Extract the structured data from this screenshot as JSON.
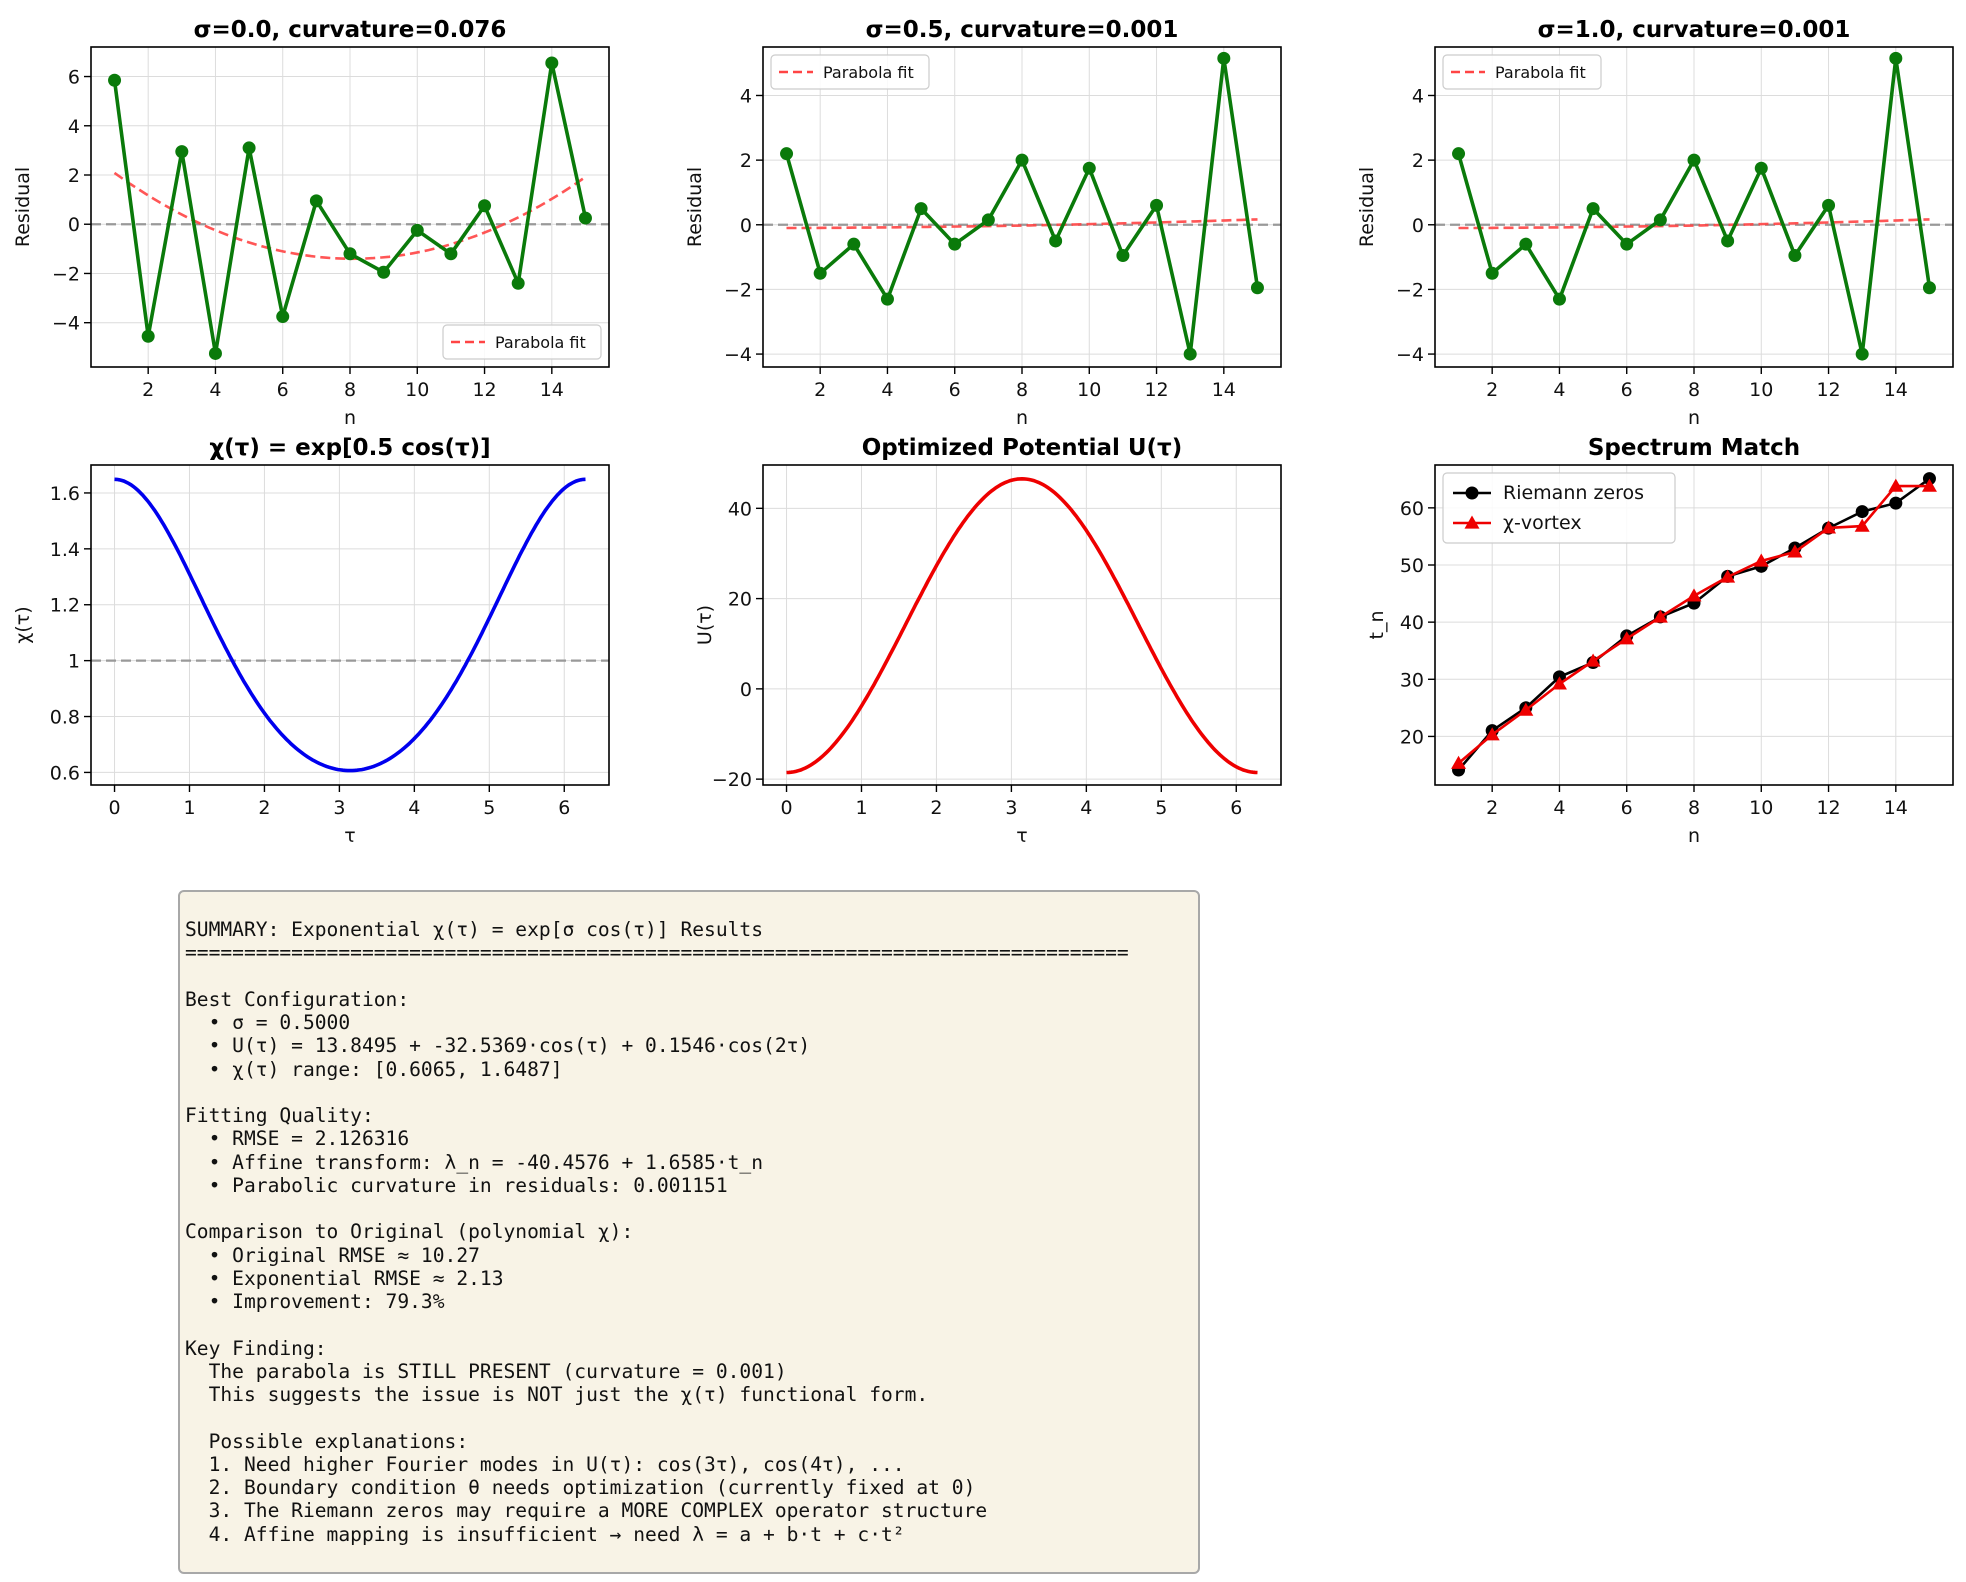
{
  "colors": {
    "residual_line": "#0a7a0a",
    "parabola": "#ff4444",
    "zero_line": "#999999",
    "chi_line": "#0000ee",
    "potential_line": "#ee0000",
    "riemann": "#000000",
    "vortex": "#ee0000",
    "grid": "#dcdcdc",
    "summary_bg": "#f8f3e6"
  },
  "chart_data": [
    {
      "id": "residual-sigma-0",
      "type": "line",
      "title": "σ=0.0, curvature=0.076",
      "xlabel": "n",
      "ylabel": "Residual",
      "xlim": [
        0.3,
        15.7
      ],
      "ylim": [
        -5.8,
        7.2
      ],
      "xticks": [
        2,
        4,
        6,
        8,
        10,
        12,
        14
      ],
      "yticks": [
        -4,
        -2,
        0,
        2,
        4,
        6
      ],
      "grid": true,
      "legend": "lower-right",
      "zero_line": 0,
      "series": [
        {
          "x": [
            1,
            2,
            3,
            4,
            5,
            6,
            7,
            8,
            9,
            10,
            11,
            12,
            13,
            14,
            15
          ],
          "values": [
            5.85,
            -4.55,
            2.95,
            -5.25,
            3.1,
            -3.75,
            0.95,
            -1.2,
            -1.95,
            -0.25,
            -1.2,
            0.75,
            -2.4,
            6.55,
            0.25
          ]
        },
        {
          "name": "Parabola fit",
          "style": "dashed",
          "parabola": [
            0.076,
            -8.3,
            1.0,
            15.0,
            2.7
          ]
        }
      ]
    },
    {
      "id": "residual-sigma-05",
      "type": "line",
      "title": "σ=0.5, curvature=0.001",
      "xlabel": "n",
      "ylabel": "Residual",
      "xlim": [
        0.3,
        15.7
      ],
      "ylim": [
        -4.4,
        5.5
      ],
      "xticks": [
        2,
        4,
        6,
        8,
        10,
        12,
        14
      ],
      "yticks": [
        -4,
        -2,
        0,
        2,
        4
      ],
      "grid": true,
      "legend": "upper-left",
      "zero_line": 0,
      "series": [
        {
          "x": [
            1,
            2,
            3,
            4,
            5,
            6,
            7,
            8,
            9,
            10,
            11,
            12,
            13,
            14,
            15
          ],
          "values": [
            2.2,
            -1.5,
            -0.6,
            -2.3,
            0.5,
            -0.6,
            0.15,
            2.0,
            -0.5,
            1.75,
            -0.95,
            0.6,
            -4.0,
            5.15,
            -1.95
          ]
        },
        {
          "name": "Parabola fit",
          "style": "dashed",
          "parabola": [
            0.001151,
            0.0,
            -0.1,
            15.0,
            0.15
          ]
        }
      ]
    },
    {
      "id": "residual-sigma-10",
      "type": "line",
      "title": "σ=1.0, curvature=0.001",
      "xlabel": "n",
      "ylabel": "Residual",
      "xlim": [
        0.3,
        15.7
      ],
      "ylim": [
        -4.4,
        5.5
      ],
      "xticks": [
        2,
        4,
        6,
        8,
        10,
        12,
        14
      ],
      "yticks": [
        -4,
        -2,
        0,
        2,
        4
      ],
      "grid": true,
      "legend": "upper-left",
      "zero_line": 0,
      "series": [
        {
          "x": [
            1,
            2,
            3,
            4,
            5,
            6,
            7,
            8,
            9,
            10,
            11,
            12,
            13,
            14,
            15
          ],
          "values": [
            2.2,
            -1.5,
            -0.6,
            -2.3,
            0.5,
            -0.6,
            0.15,
            2.0,
            -0.5,
            1.75,
            -0.95,
            0.6,
            -4.0,
            5.15,
            -1.95
          ]
        },
        {
          "name": "Parabola fit",
          "style": "dashed",
          "parabola": [
            0.001151,
            0.0,
            -0.1,
            15.0,
            0.15
          ]
        }
      ]
    },
    {
      "id": "chi-function",
      "type": "line",
      "title": "χ(τ) = exp[0.5 cos(τ)]",
      "xlabel": "τ",
      "ylabel": "χ(τ)",
      "xlim": [
        -0.314,
        6.597
      ],
      "ylim": [
        0.555,
        1.7
      ],
      "xticks": [
        0,
        1,
        2,
        3,
        4,
        5,
        6
      ],
      "yticks": [
        0.6,
        0.8,
        1.0,
        1.2,
        1.4,
        1.6
      ],
      "grid": true,
      "reference_line": 1.0,
      "formula": "exp(0.5*cos(t))",
      "x_range": [
        0,
        6.2832
      ]
    },
    {
      "id": "potential-function",
      "type": "line",
      "title": "Optimized Potential U(τ)",
      "xlabel": "τ",
      "ylabel": "U(τ)",
      "xlim": [
        -0.314,
        6.597
      ],
      "ylim": [
        -21.3,
        49.6
      ],
      "xticks": [
        0,
        1,
        2,
        3,
        4,
        5,
        6
      ],
      "yticks": [
        -20,
        0,
        20,
        40
      ],
      "grid": true,
      "formula": "13.8495 - 32.5369*cos(t) + 0.1546*cos(2t)",
      "x_range": [
        0,
        6.2832
      ]
    },
    {
      "id": "spectrum-match",
      "type": "line",
      "title": "Spectrum Match",
      "xlabel": "n",
      "ylabel": "t_n",
      "xlim": [
        0.3,
        15.7
      ],
      "ylim": [
        11.5,
        67.5
      ],
      "xticks": [
        2,
        4,
        6,
        8,
        10,
        12,
        14
      ],
      "yticks": [
        20,
        30,
        40,
        50,
        60
      ],
      "grid": true,
      "legend": "upper-left",
      "series": [
        {
          "name": "Riemann zeros",
          "marker": "circle",
          "x": [
            1,
            2,
            3,
            4,
            5,
            6,
            7,
            8,
            9,
            10,
            11,
            12,
            13,
            14,
            15
          ],
          "values": [
            14.13,
            21.02,
            25.01,
            30.42,
            32.94,
            37.59,
            40.92,
            43.33,
            48.01,
            49.77,
            52.97,
            56.45,
            59.35,
            60.83,
            65.11
          ]
        },
        {
          "name": "χ-vortex",
          "marker": "triangle",
          "x": [
            1,
            2,
            3,
            4,
            5,
            6,
            7,
            8,
            9,
            10,
            11,
            12,
            13,
            14,
            15
          ],
          "values": [
            15.3,
            20.3,
            24.6,
            29.2,
            33.2,
            37.1,
            40.9,
            44.6,
            47.9,
            50.7,
            52.3,
            56.5,
            56.8,
            63.8,
            63.8
          ]
        }
      ]
    }
  ],
  "summary": {
    "lines": [
      "SUMMARY: Exponential χ(τ) = exp[σ cos(τ)] Results",
      "================================================================================",
      "",
      "Best Configuration:",
      "  • σ = 0.5000",
      "  • U(τ) = 13.8495 + -32.5369·cos(τ) + 0.1546·cos(2τ)",
      "  • χ(τ) range: [0.6065, 1.6487]",
      "",
      "Fitting Quality:",
      "  • RMSE = 2.126316",
      "  • Affine transform: λ_n = -40.4576 + 1.6585·t_n",
      "  • Parabolic curvature in residuals: 0.001151",
      "",
      "Comparison to Original (polynomial χ):",
      "  • Original RMSE ≈ 10.27",
      "  • Exponential RMSE ≈ 2.13",
      "  • Improvement: 79.3%",
      "",
      "Key Finding:",
      "  The parabola is STILL PRESENT (curvature = 0.001)",
      "  This suggests the issue is NOT just the χ(τ) functional form.",
      "",
      "  Possible explanations:",
      "  1. Need higher Fourier modes in U(τ): cos(3τ), cos(4τ), ...",
      "  2. Boundary condition θ needs optimization (currently fixed at 0)",
      "  3. The Riemann zeros may require a MORE COMPLEX operator structure",
      "  4. Affine mapping is insufficient → need λ = a + b·t + c·t²"
    ]
  }
}
